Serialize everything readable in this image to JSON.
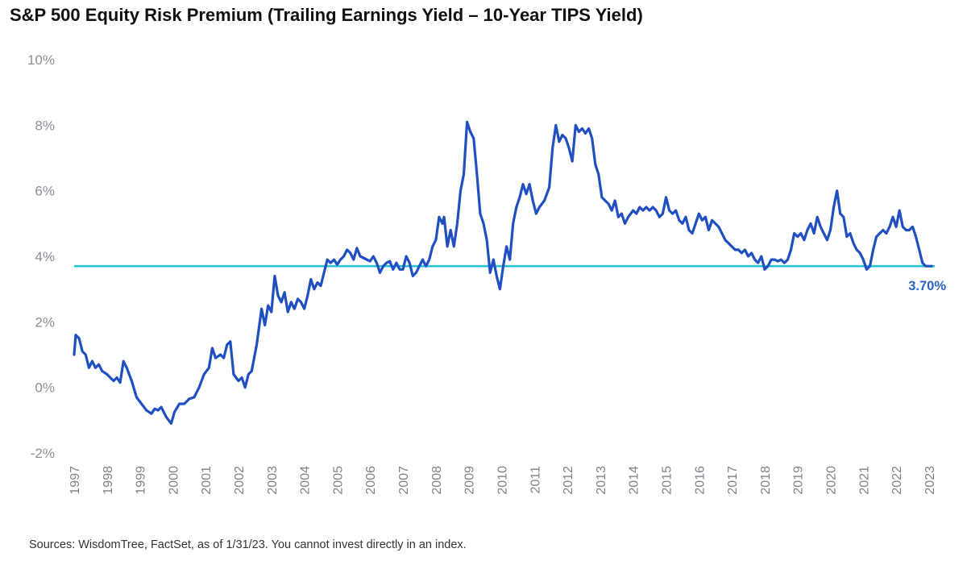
{
  "page": {
    "title": "S&P 500 Equity Risk Premium (Trailing Earnings Yield – 10-Year TIPS Yield)",
    "source": "Sources: WisdomTree, FactSet, as of 1/31/23. You cannot invest directly in an index."
  },
  "chart_data": {
    "type": "line",
    "title": "S&P 500 Equity Risk Premium (Trailing Earnings Yield – 10-Year TIPS Yield)",
    "xlabel": "",
    "ylabel": "",
    "ylim": [
      -2,
      10
    ],
    "xlim": [
      1997,
      2023.1
    ],
    "y_ticks": [
      -2,
      0,
      2,
      4,
      6,
      8,
      10
    ],
    "y_tick_labels": [
      "-2%",
      "0%",
      "2%",
      "4%",
      "6%",
      "8%",
      "10%"
    ],
    "x_tick_labels": [
      "1997",
      "1998",
      "1999",
      "2000",
      "2001",
      "2002",
      "2003",
      "2004",
      "2005",
      "2006",
      "2007",
      "2008",
      "2009",
      "2010",
      "2011",
      "2012",
      "2013",
      "2014",
      "2015",
      "2016",
      "2017",
      "2018",
      "2019",
      "2020",
      "2021",
      "2022",
      "2023"
    ],
    "grid": false,
    "legend": "none",
    "colors": {
      "series": "#1f4fc1",
      "reference": "#27c4d6",
      "reference_label": "#2a63c8"
    },
    "series": [
      {
        "points": [
          [
            1997.0,
            1.0
          ],
          [
            1997.05,
            1.6
          ],
          [
            1997.15,
            1.5
          ],
          [
            1997.25,
            1.1
          ],
          [
            1997.35,
            1.0
          ],
          [
            1997.45,
            0.6
          ],
          [
            1997.55,
            0.8
          ],
          [
            1997.65,
            0.6
          ],
          [
            1997.75,
            0.7
          ],
          [
            1997.85,
            0.5
          ],
          [
            1998.0,
            0.4
          ],
          [
            1998.1,
            0.3
          ],
          [
            1998.2,
            0.2
          ],
          [
            1998.3,
            0.3
          ],
          [
            1998.4,
            0.15
          ],
          [
            1998.5,
            0.8
          ],
          [
            1998.6,
            0.6
          ],
          [
            1998.75,
            0.2
          ],
          [
            1998.9,
            -0.3
          ],
          [
            1999.05,
            -0.5
          ],
          [
            1999.2,
            -0.7
          ],
          [
            1999.35,
            -0.8
          ],
          [
            1999.45,
            -0.65
          ],
          [
            1999.55,
            -0.7
          ],
          [
            1999.65,
            -0.6
          ],
          [
            1999.8,
            -0.9
          ],
          [
            1999.95,
            -1.1
          ],
          [
            2000.05,
            -0.75
          ],
          [
            2000.2,
            -0.5
          ],
          [
            2000.35,
            -0.5
          ],
          [
            2000.5,
            -0.35
          ],
          [
            2000.65,
            -0.3
          ],
          [
            2000.8,
            0.0
          ],
          [
            2000.95,
            0.4
          ],
          [
            2001.1,
            0.6
          ],
          [
            2001.2,
            1.2
          ],
          [
            2001.3,
            0.9
          ],
          [
            2001.45,
            1.0
          ],
          [
            2001.55,
            0.9
          ],
          [
            2001.65,
            1.3
          ],
          [
            2001.75,
            1.4
          ],
          [
            2001.85,
            0.4
          ],
          [
            2002.0,
            0.2
          ],
          [
            2002.1,
            0.3
          ],
          [
            2002.2,
            0.0
          ],
          [
            2002.3,
            0.4
          ],
          [
            2002.4,
            0.5
          ],
          [
            2002.55,
            1.3
          ],
          [
            2002.7,
            2.4
          ],
          [
            2002.8,
            1.9
          ],
          [
            2002.9,
            2.5
          ],
          [
            2003.0,
            2.3
          ],
          [
            2003.1,
            3.4
          ],
          [
            2003.2,
            2.8
          ],
          [
            2003.3,
            2.6
          ],
          [
            2003.4,
            2.9
          ],
          [
            2003.5,
            2.3
          ],
          [
            2003.6,
            2.6
          ],
          [
            2003.7,
            2.4
          ],
          [
            2003.8,
            2.7
          ],
          [
            2003.9,
            2.6
          ],
          [
            2004.0,
            2.4
          ],
          [
            2004.1,
            2.8
          ],
          [
            2004.2,
            3.3
          ],
          [
            2004.3,
            3.0
          ],
          [
            2004.4,
            3.2
          ],
          [
            2004.5,
            3.1
          ],
          [
            2004.6,
            3.5
          ],
          [
            2004.7,
            3.9
          ],
          [
            2004.8,
            3.8
          ],
          [
            2004.9,
            3.9
          ],
          [
            2005.0,
            3.75
          ],
          [
            2005.1,
            3.9
          ],
          [
            2005.2,
            4.0
          ],
          [
            2005.3,
            4.2
          ],
          [
            2005.4,
            4.1
          ],
          [
            2005.5,
            3.9
          ],
          [
            2005.6,
            4.25
          ],
          [
            2005.7,
            4.0
          ],
          [
            2005.8,
            3.95
          ],
          [
            2005.9,
            3.9
          ],
          [
            2006.0,
            3.85
          ],
          [
            2006.1,
            4.0
          ],
          [
            2006.2,
            3.8
          ],
          [
            2006.3,
            3.5
          ],
          [
            2006.4,
            3.7
          ],
          [
            2006.5,
            3.8
          ],
          [
            2006.6,
            3.85
          ],
          [
            2006.7,
            3.6
          ],
          [
            2006.8,
            3.8
          ],
          [
            2006.9,
            3.6
          ],
          [
            2007.0,
            3.6
          ],
          [
            2007.1,
            4.0
          ],
          [
            2007.2,
            3.8
          ],
          [
            2007.3,
            3.4
          ],
          [
            2007.4,
            3.5
          ],
          [
            2007.5,
            3.7
          ],
          [
            2007.6,
            3.9
          ],
          [
            2007.7,
            3.7
          ],
          [
            2007.8,
            3.9
          ],
          [
            2007.9,
            4.3
          ],
          [
            2008.0,
            4.5
          ],
          [
            2008.1,
            5.2
          ],
          [
            2008.2,
            5.0
          ],
          [
            2008.25,
            5.2
          ],
          [
            2008.35,
            4.3
          ],
          [
            2008.45,
            4.8
          ],
          [
            2008.55,
            4.3
          ],
          [
            2008.65,
            5.0
          ],
          [
            2008.75,
            6.0
          ],
          [
            2008.85,
            6.5
          ],
          [
            2008.95,
            8.1
          ],
          [
            2009.05,
            7.8
          ],
          [
            2009.15,
            7.6
          ],
          [
            2009.25,
            6.5
          ],
          [
            2009.35,
            5.3
          ],
          [
            2009.45,
            5.0
          ],
          [
            2009.55,
            4.5
          ],
          [
            2009.65,
            3.5
          ],
          [
            2009.75,
            3.9
          ],
          [
            2009.85,
            3.4
          ],
          [
            2009.95,
            3.0
          ],
          [
            2010.05,
            3.7
          ],
          [
            2010.15,
            4.3
          ],
          [
            2010.25,
            3.9
          ],
          [
            2010.35,
            5.0
          ],
          [
            2010.45,
            5.5
          ],
          [
            2010.55,
            5.8
          ],
          [
            2010.65,
            6.2
          ],
          [
            2010.75,
            5.9
          ],
          [
            2010.85,
            6.2
          ],
          [
            2010.95,
            5.7
          ],
          [
            2011.05,
            5.3
          ],
          [
            2011.15,
            5.5
          ],
          [
            2011.3,
            5.7
          ],
          [
            2011.45,
            6.1
          ],
          [
            2011.55,
            7.3
          ],
          [
            2011.65,
            8.0
          ],
          [
            2011.75,
            7.5
          ],
          [
            2011.85,
            7.7
          ],
          [
            2011.95,
            7.6
          ],
          [
            2012.05,
            7.3
          ],
          [
            2012.15,
            6.9
          ],
          [
            2012.25,
            8.0
          ],
          [
            2012.35,
            7.8
          ],
          [
            2012.45,
            7.9
          ],
          [
            2012.55,
            7.75
          ],
          [
            2012.65,
            7.9
          ],
          [
            2012.75,
            7.6
          ],
          [
            2012.85,
            6.8
          ],
          [
            2012.95,
            6.5
          ],
          [
            2013.05,
            5.8
          ],
          [
            2013.15,
            5.7
          ],
          [
            2013.25,
            5.6
          ],
          [
            2013.35,
            5.4
          ],
          [
            2013.45,
            5.7
          ],
          [
            2013.55,
            5.2
          ],
          [
            2013.65,
            5.3
          ],
          [
            2013.75,
            5.0
          ],
          [
            2013.85,
            5.2
          ],
          [
            2014.0,
            5.4
          ],
          [
            2014.1,
            5.3
          ],
          [
            2014.2,
            5.5
          ],
          [
            2014.3,
            5.4
          ],
          [
            2014.4,
            5.5
          ],
          [
            2014.5,
            5.4
          ],
          [
            2014.6,
            5.5
          ],
          [
            2014.7,
            5.4
          ],
          [
            2014.8,
            5.2
          ],
          [
            2014.9,
            5.3
          ],
          [
            2015.0,
            5.8
          ],
          [
            2015.1,
            5.4
          ],
          [
            2015.2,
            5.3
          ],
          [
            2015.3,
            5.4
          ],
          [
            2015.4,
            5.1
          ],
          [
            2015.5,
            5.0
          ],
          [
            2015.6,
            5.2
          ],
          [
            2015.7,
            4.8
          ],
          [
            2015.8,
            4.7
          ],
          [
            2015.9,
            5.0
          ],
          [
            2016.0,
            5.3
          ],
          [
            2016.1,
            5.1
          ],
          [
            2016.2,
            5.2
          ],
          [
            2016.3,
            4.8
          ],
          [
            2016.4,
            5.1
          ],
          [
            2016.5,
            5.0
          ],
          [
            2016.6,
            4.9
          ],
          [
            2016.7,
            4.7
          ],
          [
            2016.8,
            4.5
          ],
          [
            2016.9,
            4.4
          ],
          [
            2017.0,
            4.3
          ],
          [
            2017.1,
            4.2
          ],
          [
            2017.2,
            4.2
          ],
          [
            2017.3,
            4.1
          ],
          [
            2017.4,
            4.2
          ],
          [
            2017.5,
            4.0
          ],
          [
            2017.6,
            4.1
          ],
          [
            2017.7,
            3.9
          ],
          [
            2017.8,
            3.8
          ],
          [
            2017.9,
            4.0
          ],
          [
            2018.0,
            3.6
          ],
          [
            2018.1,
            3.7
          ],
          [
            2018.2,
            3.9
          ],
          [
            2018.3,
            3.9
          ],
          [
            2018.4,
            3.85
          ],
          [
            2018.5,
            3.9
          ],
          [
            2018.6,
            3.8
          ],
          [
            2018.7,
            3.9
          ],
          [
            2018.8,
            4.2
          ],
          [
            2018.9,
            4.7
          ],
          [
            2019.0,
            4.6
          ],
          [
            2019.1,
            4.7
          ],
          [
            2019.2,
            4.5
          ],
          [
            2019.3,
            4.8
          ],
          [
            2019.4,
            5.0
          ],
          [
            2019.5,
            4.7
          ],
          [
            2019.6,
            5.2
          ],
          [
            2019.7,
            4.9
          ],
          [
            2019.8,
            4.7
          ],
          [
            2019.9,
            4.5
          ],
          [
            2020.0,
            4.8
          ],
          [
            2020.1,
            5.5
          ],
          [
            2020.2,
            6.0
          ],
          [
            2020.3,
            5.3
          ],
          [
            2020.4,
            5.2
          ],
          [
            2020.5,
            4.6
          ],
          [
            2020.6,
            4.7
          ],
          [
            2020.7,
            4.4
          ],
          [
            2020.8,
            4.2
          ],
          [
            2020.9,
            4.1
          ],
          [
            2021.0,
            3.9
          ],
          [
            2021.1,
            3.6
          ],
          [
            2021.2,
            3.7
          ],
          [
            2021.3,
            4.2
          ],
          [
            2021.4,
            4.6
          ],
          [
            2021.5,
            4.7
          ],
          [
            2021.6,
            4.8
          ],
          [
            2021.7,
            4.7
          ],
          [
            2021.8,
            4.9
          ],
          [
            2021.9,
            5.2
          ],
          [
            2022.0,
            4.9
          ],
          [
            2022.1,
            5.4
          ],
          [
            2022.2,
            4.9
          ],
          [
            2022.3,
            4.8
          ],
          [
            2022.4,
            4.8
          ],
          [
            2022.5,
            4.9
          ],
          [
            2022.6,
            4.6
          ],
          [
            2022.7,
            4.2
          ],
          [
            2022.8,
            3.8
          ],
          [
            2022.9,
            3.7
          ],
          [
            2023.0,
            3.7
          ],
          [
            2023.08,
            3.7
          ]
        ]
      }
    ],
    "reference_line": {
      "value": 3.7,
      "label": "3.70%"
    }
  }
}
